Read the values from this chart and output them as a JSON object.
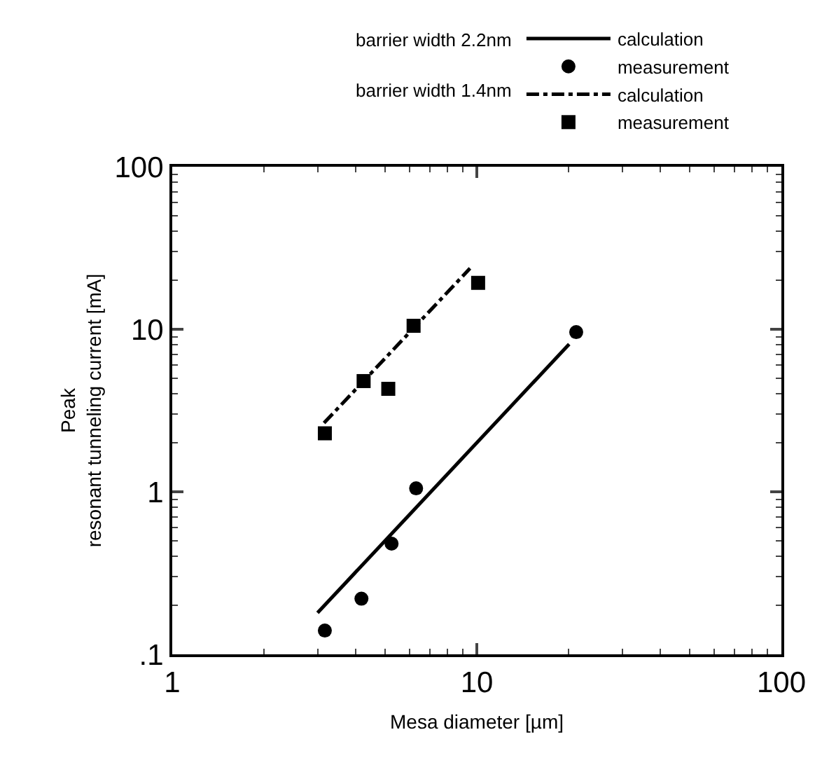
{
  "chart_data": {
    "type": "scatter",
    "xlabel": "Mesa diameter [µm]",
    "ylabel": "Peak\nresonant tunneling current [mA]",
    "log": "xy",
    "xlim": [
      1,
      100
    ],
    "ylim": [
      0.1,
      100
    ],
    "xticks": [
      1,
      10,
      100
    ],
    "yticks": [
      {
        "value": 0.1,
        "label": ".1"
      },
      1,
      10,
      100
    ],
    "grid": false,
    "legend": "top right",
    "annotations": [
      "barrier width 2.2nm",
      "barrier width 1.4nm"
    ],
    "series": [
      {
        "name": "calculation",
        "type": "line",
        "color": "#000000",
        "line_style": "solid",
        "marker": "none",
        "x": [
          3.0,
          20.1
        ],
        "values": [
          0.18,
          8.1
        ]
      },
      {
        "name": "measurement",
        "type": "scatter",
        "color": "#000000",
        "marker": "circle",
        "x": [
          3.17,
          4.18,
          5.25,
          6.32,
          21.2
        ],
        "values": [
          0.14,
          0.22,
          0.48,
          1.05,
          9.6
        ]
      },
      {
        "name": "calculation",
        "type": "line",
        "color": "#000000",
        "line_style": "dashdot",
        "marker": "none",
        "x": [
          3.15,
          9.5
        ],
        "values": [
          2.65,
          23.7
        ]
      },
      {
        "name": "measurement",
        "type": "scatter",
        "color": "#000000",
        "marker": "square",
        "x": [
          3.17,
          4.25,
          5.12,
          6.2,
          10.1
        ],
        "values": [
          2.29,
          4.8,
          4.3,
          10.5,
          19.3
        ]
      }
    ]
  }
}
